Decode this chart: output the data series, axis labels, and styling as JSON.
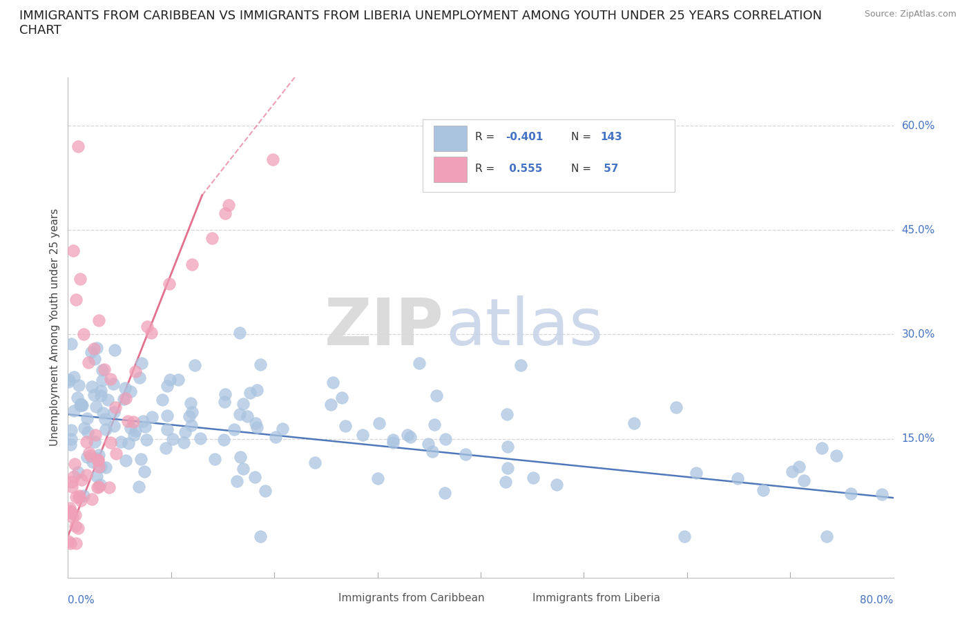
{
  "title": "IMMIGRANTS FROM CARIBBEAN VS IMMIGRANTS FROM LIBERIA UNEMPLOYMENT AMONG YOUTH UNDER 25 YEARS CORRELATION\nCHART",
  "source": "Source: ZipAtlas.com",
  "ylabel": "Unemployment Among Youth under 25 years",
  "ylabel_right_ticks": [
    "60.0%",
    "45.0%",
    "30.0%",
    "15.0%"
  ],
  "ylabel_right_vals": [
    0.6,
    0.45,
    0.3,
    0.15
  ],
  "xmin": 0.0,
  "xmax": 0.8,
  "ymin": -0.05,
  "ymax": 0.67,
  "caribbean_color": "#aac4e0",
  "liberia_color": "#f0a0b8",
  "caribbean_line_color": "#3060b0",
  "liberia_line_color": "#e06080",
  "R_caribbean": -0.401,
  "N_caribbean": 143,
  "R_liberia": 0.555,
  "N_liberia": 57,
  "grid_color": "#cccccc",
  "background_color": "#ffffff",
  "title_fontsize": 13,
  "axis_label_color": "#4472c4",
  "watermark_zip_color": "#d8d8d8",
  "watermark_atlas_color": "#c8d4e8"
}
